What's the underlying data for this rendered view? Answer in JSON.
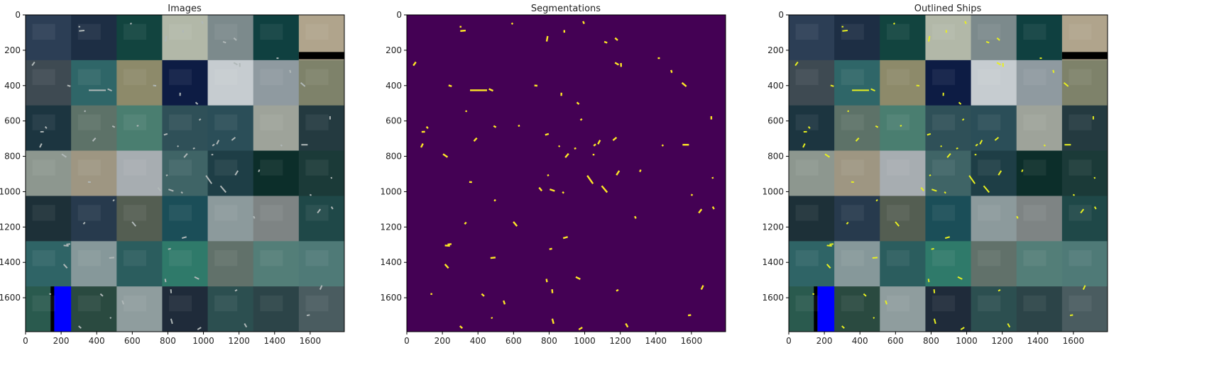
{
  "figure": {
    "panels": [
      {
        "key": "images",
        "title": "Images",
        "kind": "mosaic"
      },
      {
        "key": "segmentations",
        "title": "Segmentations",
        "kind": "mask"
      },
      {
        "key": "outlined",
        "title": "Outlined Ships",
        "kind": "mosaic-outlined"
      }
    ],
    "axes": {
      "x_range": [
        0,
        1792
      ],
      "y_range": [
        0,
        1792
      ],
      "y_inverted": true,
      "x_ticks": [
        0,
        200,
        400,
        600,
        800,
        1000,
        1200,
        1400,
        1600
      ],
      "y_ticks": [
        0,
        200,
        400,
        600,
        800,
        1000,
        1200,
        1400,
        1600
      ]
    },
    "mosaic": {
      "grid": [
        7,
        7
      ],
      "tile_colors": [
        [
          "#2c3e55",
          "#1d2e44",
          "#12443f",
          "#b2b8a8",
          "#7c8a8c",
          "#0f4040",
          "#b0a48c"
        ],
        [
          "#3e4a52",
          "#2f6668",
          "#8d8a6a",
          "#0d1c44",
          "#c6ccd0",
          "#8f9aa0",
          "#7e826a"
        ],
        [
          "#1c3540",
          "#5d7268",
          "#4a7e70",
          "#2f5058",
          "#2b4e58",
          "#9ea39a",
          "#243a40"
        ],
        [
          "#8d978f",
          "#9e9682",
          "#a7adb1",
          "#3f6466",
          "#1e3e46",
          "#0c2e2a",
          "#1b3a38"
        ],
        [
          "#1d3038",
          "#273a4d",
          "#545e52",
          "#1b4e58",
          "#8c9a9c",
          "#7e8484",
          "#1f4848"
        ],
        [
          "#2f6466",
          "#86989a",
          "#2b5d5e",
          "#2f7a6a",
          "#61716a",
          "#537e78",
          "#4f7a77"
        ],
        [
          "#2a5a4e",
          "#2a4a40",
          "#8f9d9e",
          "#1f2b3a",
          "#2c4f50",
          "#2c4448",
          "#4a5c60"
        ]
      ],
      "blue_strip_color": "#0000ff",
      "black_band_color": "#000000"
    },
    "mask": {
      "background_color": "#440154",
      "foreground_color": "#fde725"
    },
    "outline": {
      "color": "#e8f020"
    }
  }
}
